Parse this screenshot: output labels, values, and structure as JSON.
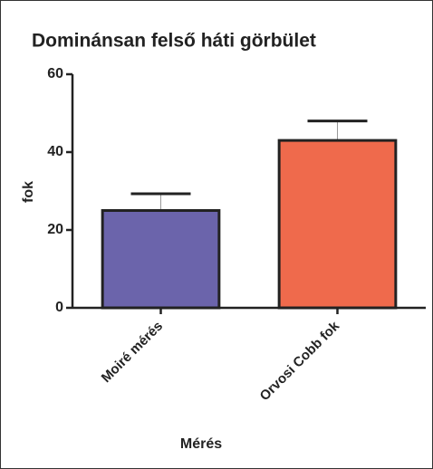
{
  "chart_data": {
    "type": "bar",
    "title": "Dominánsan felső háti görbület",
    "x_label": "Mérés",
    "y_label": "fok",
    "categories": [
      "Moiré mérés",
      "Orvosi Cobb fok"
    ],
    "values": [
      25,
      43
    ],
    "errors": [
      4.3,
      5
    ],
    "colors": [
      "#6b64ab",
      "#ef6a4c"
    ],
    "ylim": [
      0,
      60
    ],
    "yticks": [
      0,
      20,
      40,
      60
    ]
  }
}
